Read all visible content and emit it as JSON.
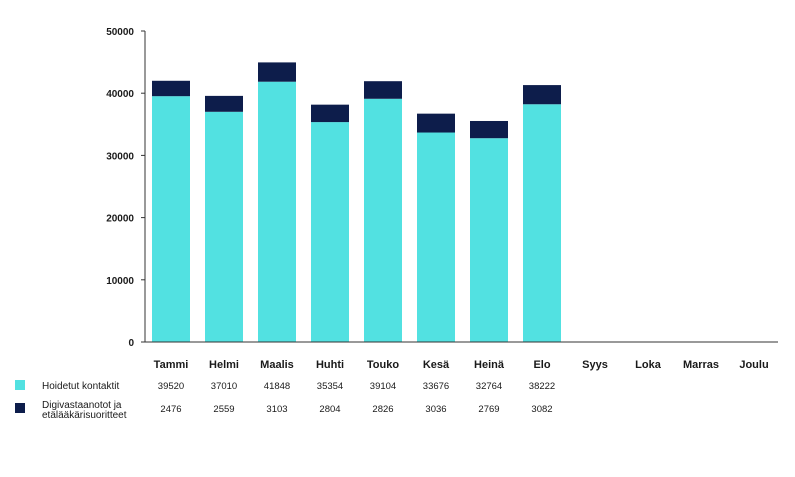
{
  "colors": {
    "series1": "#52e1e1",
    "series2": "#0d1d4b",
    "axis": "#333333"
  },
  "chart_data": {
    "type": "bar",
    "stacked": true,
    "title": "",
    "xlabel": "",
    "ylabel": "",
    "ylim": [
      0,
      50000
    ],
    "yticks": [
      "0",
      "10000",
      "20000",
      "30000",
      "40000",
      "50000"
    ],
    "grid": false,
    "legend_position": "bottom-left table",
    "categories": [
      "Tammi",
      "Helmi",
      "Maalis",
      "Huhti",
      "Touko",
      "Kesä",
      "Heinä",
      "Elo",
      "Syys",
      "Loka",
      "Marras",
      "Joulu"
    ],
    "series": [
      {
        "name": "Hoidetut kontaktit",
        "values": [
          39520,
          37010,
          41848,
          35354,
          39104,
          33676,
          32764,
          38222,
          null,
          null,
          null,
          null
        ]
      },
      {
        "name": "Digivastaanotot ja etälääkärisuoritteet",
        "name_lines": [
          "Digivastaanotot ja",
          "etälääkärisuoritteet"
        ],
        "values": [
          2476,
          2559,
          3103,
          2804,
          2826,
          3036,
          2769,
          3082,
          null,
          null,
          null,
          null
        ]
      }
    ]
  }
}
